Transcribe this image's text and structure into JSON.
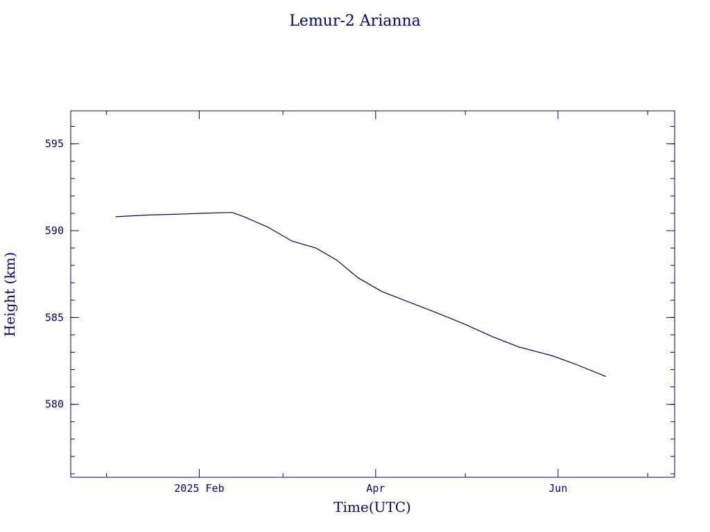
{
  "colors": {
    "ink": "#00007f",
    "line": "#000066",
    "background": "#ffffff"
  },
  "chart_data": {
    "type": "line",
    "title": "Lemur-2 Arianna",
    "xlabel": "Time(UTC)",
    "ylabel": "Height (km)",
    "xlim": [
      "2024-12-20",
      "2025-07-10"
    ],
    "ylim": [
      575.8,
      596.9
    ],
    "grid": false,
    "legend": "none",
    "x_ticks": [
      {
        "date": "2025-02-01",
        "label": "2025 Feb"
      },
      {
        "date": "2025-04-01",
        "label": "Apr"
      },
      {
        "date": "2025-06-01",
        "label": "Jun"
      }
    ],
    "x_minor_ticks": [
      "2025-01-01",
      "2025-03-01",
      "2025-05-01",
      "2025-07-01"
    ],
    "y_ticks": [
      580,
      585,
      590,
      595
    ],
    "y_tick_labels": [
      "580",
      "585",
      "590",
      "595"
    ],
    "y_minor_step": 1,
    "series": [
      {
        "x": [
          "2025-01-04",
          "2025-01-15",
          "2025-01-25",
          "2025-02-02",
          "2025-02-12",
          "2025-02-16",
          "2025-02-24",
          "2025-03-04",
          "2025-03-12",
          "2025-03-19",
          "2025-03-26",
          "2025-04-03",
          "2025-04-12",
          "2025-04-21",
          "2025-05-01",
          "2025-05-10",
          "2025-05-19",
          "2025-05-30",
          "2025-06-07",
          "2025-06-17"
        ],
        "y": [
          590.8,
          590.9,
          590.95,
          591.0,
          591.05,
          590.8,
          590.2,
          589.4,
          589.0,
          588.3,
          587.3,
          586.5,
          585.9,
          585.3,
          584.6,
          583.9,
          583.3,
          582.8,
          582.3,
          581.6
        ]
      }
    ]
  }
}
